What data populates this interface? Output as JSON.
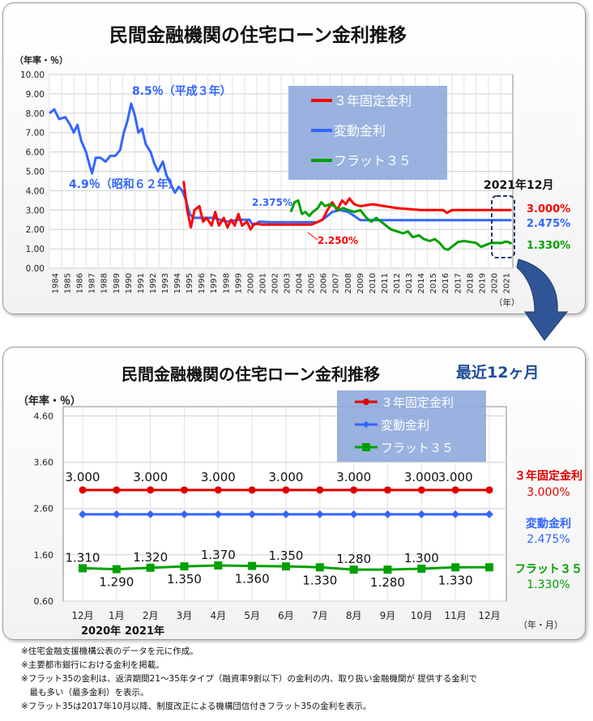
{
  "top": {
    "title": "民間金融機関の住宅ローン金利推移",
    "ylabel": "（年率・％）",
    "xunit": "（年）",
    "box_label": "2021年12月",
    "end_labels": {
      "fixed3": "3.000%",
      "variable": "2.475%",
      "flat35": "1.330%"
    },
    "annotations": [
      {
        "text": "8.5％（平成３年）",
        "color": "#3366ff"
      },
      {
        "text": "4.9％（昭和６２年）",
        "color": "#3366ff"
      },
      {
        "text": "2.375%",
        "color": "#3366ff"
      },
      {
        "text": "2.250%",
        "color": "#ff0000"
      }
    ]
  },
  "bottom": {
    "title": "民間金融機関の住宅ローン金利推移",
    "subtitle": "最近12ヶ月",
    "ylabel": "（年率・％）",
    "xunit": "（年・月）",
    "year_labels": [
      "2020年",
      "2021年"
    ],
    "end_labels": [
      {
        "name": "３年固定金利",
        "value": "3.000%",
        "color": "#e00000"
      },
      {
        "name": "変動金利",
        "value": "2.475%",
        "color": "#3366ff"
      },
      {
        "name": "フラット３５",
        "value": "1.330%",
        "color": "#00a000"
      }
    ]
  },
  "notes": [
    "※住宅金融支援機構公表のデータを元に作成。",
    "※主要都市銀行における金利を掲載。",
    "※フラット35の金利は、返済期間21～35年タイプ（融資率9割以下）の金利の内、取り扱い金融機関が 提供する金利で",
    "　最も多い（最多金利）を表示。",
    "※フラット35は2017年10月以降、制度改正による機構団信付きフラット35の金利を表示。"
  ],
  "chart_data": [
    {
      "type": "line",
      "title": "民間金融機関の住宅ローン金利推移",
      "ylabel": "（年率・％）",
      "xlabel": "（年）",
      "ylim": [
        0,
        10
      ],
      "yticks": [
        "0.00",
        "1.00",
        "2.00",
        "3.00",
        "4.00",
        "5.00",
        "6.00",
        "7.00",
        "8.00",
        "9.00",
        "10.00"
      ],
      "categories": [
        "1984",
        "1985",
        "1986",
        "1987",
        "1988",
        "1989",
        "1990",
        "1991",
        "1992",
        "1993",
        "1994",
        "1995",
        "1996",
        "1997",
        "1998",
        "1999",
        "2000",
        "2001",
        "2002",
        "2003",
        "2004",
        "2005",
        "2006",
        "2007",
        "2008",
        "2009",
        "2010",
        "2011",
        "2012",
        "2013",
        "2014",
        "2015",
        "2016",
        "2017",
        "2018",
        "2019",
        "2020",
        "2021"
      ],
      "legend": {
        "placement": "top-center",
        "entries": [
          "３年固定金利",
          "変動金利",
          "フラット３５"
        ]
      },
      "grid": true,
      "series": [
        {
          "name": "変動金利",
          "color": "#3366ff",
          "points": [
            [
              1984.0,
              8.0
            ],
            [
              1984.4,
              8.2
            ],
            [
              1984.8,
              7.7
            ],
            [
              1985.3,
              7.8
            ],
            [
              1985.7,
              7.4
            ],
            [
              1986.0,
              7.0
            ],
            [
              1986.3,
              7.4
            ],
            [
              1986.6,
              6.6
            ],
            [
              1987.0,
              6.0
            ],
            [
              1987.3,
              5.3
            ],
            [
              1987.5,
              4.9
            ],
            [
              1987.8,
              5.7
            ],
            [
              1988.2,
              5.7
            ],
            [
              1988.6,
              5.5
            ],
            [
              1989.0,
              5.8
            ],
            [
              1989.4,
              5.8
            ],
            [
              1989.8,
              6.1
            ],
            [
              1990.1,
              7.0
            ],
            [
              1990.4,
              7.6
            ],
            [
              1990.7,
              8.5
            ],
            [
              1991.0,
              7.9
            ],
            [
              1991.3,
              7.0
            ],
            [
              1991.6,
              7.2
            ],
            [
              1991.9,
              6.4
            ],
            [
              1992.3,
              6.0
            ],
            [
              1992.6,
              5.4
            ],
            [
              1992.9,
              5.0
            ],
            [
              1993.3,
              5.5
            ],
            [
              1993.6,
              4.8
            ],
            [
              1993.9,
              4.4
            ],
            [
              1994.3,
              3.9
            ],
            [
              1994.6,
              4.2
            ],
            [
              1994.9,
              4.0
            ],
            [
              1995.2,
              3.5
            ],
            [
              1995.5,
              2.8
            ],
            [
              1995.8,
              2.6
            ],
            [
              1996.5,
              2.6
            ],
            [
              1997.5,
              2.6
            ],
            [
              1998.5,
              2.4
            ],
            [
              1999.5,
              2.5
            ],
            [
              2000.4,
              2.5
            ],
            [
              2000.7,
              2.2
            ],
            [
              2001.2,
              2.4
            ],
            [
              2002.0,
              2.375
            ],
            [
              2003.0,
              2.375
            ],
            [
              2004.0,
              2.375
            ],
            [
              2005.0,
              2.375
            ],
            [
              2006.0,
              2.375
            ],
            [
              2006.6,
              2.6
            ],
            [
              2007.2,
              2.9
            ],
            [
              2007.8,
              3.0
            ],
            [
              2008.5,
              2.9
            ],
            [
              2009.0,
              2.7
            ],
            [
              2009.5,
              2.475
            ],
            [
              2021.9,
              2.475
            ]
          ]
        },
        {
          "name": "３年固定金利",
          "color": "#ff0000",
          "points": [
            [
              1995.0,
              4.5
            ],
            [
              1995.3,
              3.0
            ],
            [
              1995.6,
              2.1
            ],
            [
              1995.9,
              3.0
            ],
            [
              1996.3,
              3.2
            ],
            [
              1996.6,
              2.4
            ],
            [
              1996.9,
              2.6
            ],
            [
              1997.3,
              2.2
            ],
            [
              1997.6,
              2.9
            ],
            [
              1997.9,
              2.2
            ],
            [
              1998.3,
              2.6
            ],
            [
              1998.6,
              2.1
            ],
            [
              1998.9,
              2.5
            ],
            [
              1999.2,
              2.2
            ],
            [
              1999.5,
              2.8
            ],
            [
              1999.8,
              2.2
            ],
            [
              2000.2,
              2.4
            ],
            [
              2000.5,
              2.0
            ],
            [
              2000.8,
              2.3
            ],
            [
              2001.5,
              2.25
            ],
            [
              2002.5,
              2.25
            ],
            [
              2003.5,
              2.25
            ],
            [
              2004.5,
              2.25
            ],
            [
              2005.5,
              2.25
            ],
            [
              2006.4,
              2.5
            ],
            [
              2006.8,
              3.0
            ],
            [
              2007.2,
              3.4
            ],
            [
              2007.6,
              3.0
            ],
            [
              2008.0,
              3.5
            ],
            [
              2008.3,
              3.3
            ],
            [
              2008.6,
              3.6
            ],
            [
              2009.0,
              3.3
            ],
            [
              2009.5,
              3.2
            ],
            [
              2010.5,
              3.3
            ],
            [
              2011.5,
              3.2
            ],
            [
              2012.5,
              3.1
            ],
            [
              2013.5,
              3.05
            ],
            [
              2014.5,
              3.0
            ],
            [
              2016.3,
              3.0
            ],
            [
              2016.6,
              2.85
            ],
            [
              2017.0,
              3.0
            ],
            [
              2021.9,
              3.0
            ]
          ]
        },
        {
          "name": "フラット３５",
          "color": "#00a000",
          "points": [
            [
              2003.8,
              2.9
            ],
            [
              2004.1,
              3.4
            ],
            [
              2004.4,
              3.5
            ],
            [
              2004.7,
              2.8
            ],
            [
              2005.0,
              2.9
            ],
            [
              2005.3,
              2.7
            ],
            [
              2005.6,
              2.9
            ],
            [
              2006.0,
              3.1
            ],
            [
              2006.3,
              3.4
            ],
            [
              2006.6,
              3.2
            ],
            [
              2007.0,
              3.3
            ],
            [
              2007.4,
              3.2
            ],
            [
              2007.7,
              3.0
            ],
            [
              2008.1,
              3.1
            ],
            [
              2008.5,
              3.0
            ],
            [
              2009.0,
              2.9
            ],
            [
              2009.5,
              3.0
            ],
            [
              2010.0,
              2.6
            ],
            [
              2010.4,
              2.4
            ],
            [
              2010.8,
              2.6
            ],
            [
              2011.2,
              2.4
            ],
            [
              2011.6,
              2.2
            ],
            [
              2012.0,
              2.0
            ],
            [
              2012.5,
              1.9
            ],
            [
              2013.0,
              1.8
            ],
            [
              2013.4,
              1.9
            ],
            [
              2013.8,
              1.6
            ],
            [
              2014.3,
              1.7
            ],
            [
              2014.7,
              1.5
            ],
            [
              2015.2,
              1.4
            ],
            [
              2015.6,
              1.5
            ],
            [
              2016.0,
              1.3
            ],
            [
              2016.4,
              1.0
            ],
            [
              2016.7,
              0.95
            ],
            [
              2017.0,
              1.1
            ],
            [
              2017.5,
              1.35
            ],
            [
              2018.0,
              1.4
            ],
            [
              2018.5,
              1.35
            ],
            [
              2019.0,
              1.3
            ],
            [
              2019.4,
              1.1
            ],
            [
              2019.8,
              1.2
            ],
            [
              2020.2,
              1.3
            ],
            [
              2020.6,
              1.3
            ],
            [
              2020.92,
              1.31
            ],
            [
              2021.0,
              1.29
            ],
            [
              2021.2,
              1.32
            ],
            [
              2021.3,
              1.35
            ],
            [
              2021.4,
              1.37
            ],
            [
              2021.5,
              1.36
            ],
            [
              2021.6,
              1.35
            ],
            [
              2021.7,
              1.33
            ],
            [
              2021.8,
              1.28
            ],
            [
              2021.85,
              1.3
            ],
            [
              2021.9,
              1.33
            ]
          ]
        }
      ]
    },
    {
      "type": "line",
      "title": "民間金融機関の住宅ローン金利推移",
      "subtitle": "最近12ヶ月",
      "ylabel": "（年率・％）",
      "xlabel": "（年・月）",
      "ylim": [
        0.6,
        4.8
      ],
      "yticks": [
        "0.60",
        "1.60",
        "2.60",
        "3.60",
        "4.60"
      ],
      "categories": [
        "12月",
        "1月",
        "2月",
        "3月",
        "4月",
        "5月",
        "6月",
        "7月",
        "8月",
        "9月",
        "10月",
        "11月",
        "12月"
      ],
      "legend": {
        "placement": "top-right",
        "entries": [
          "３年固定金利",
          "変動金利",
          "フラット３５"
        ]
      },
      "grid": true,
      "series": [
        {
          "name": "３年固定金利",
          "color": "#e00000",
          "marker": "circle",
          "values": [
            3.0,
            3.0,
            3.0,
            3.0,
            3.0,
            3.0,
            3.0,
            3.0,
            3.0,
            3.0,
            3.0,
            3.0,
            3.0
          ],
          "labels": [
            "3.000",
            "",
            "3.000",
            "",
            "3.000",
            "",
            "3.000",
            "",
            "3.000",
            "",
            "3.000",
            "3.000",
            ""
          ]
        },
        {
          "name": "変動金利",
          "color": "#3366ff",
          "marker": "diamond",
          "values": [
            2.475,
            2.475,
            2.475,
            2.475,
            2.475,
            2.475,
            2.475,
            2.475,
            2.475,
            2.475,
            2.475,
            2.475,
            2.475
          ],
          "labels": [
            "",
            "",
            "",
            "",
            "",
            "",
            "",
            "",
            "",
            "",
            "",
            "",
            ""
          ]
        },
        {
          "name": "フラット３５",
          "color": "#00a000",
          "marker": "square",
          "values": [
            1.31,
            1.29,
            1.32,
            1.35,
            1.37,
            1.36,
            1.35,
            1.33,
            1.28,
            1.28,
            1.3,
            1.33,
            1.33
          ],
          "labels": [
            "1.310",
            "1.290",
            "1.320",
            "1.350",
            "1.370",
            "1.360",
            "1.350",
            "1.330",
            "1.280",
            "1.280",
            "1.300",
            "1.330",
            ""
          ]
        }
      ]
    }
  ]
}
